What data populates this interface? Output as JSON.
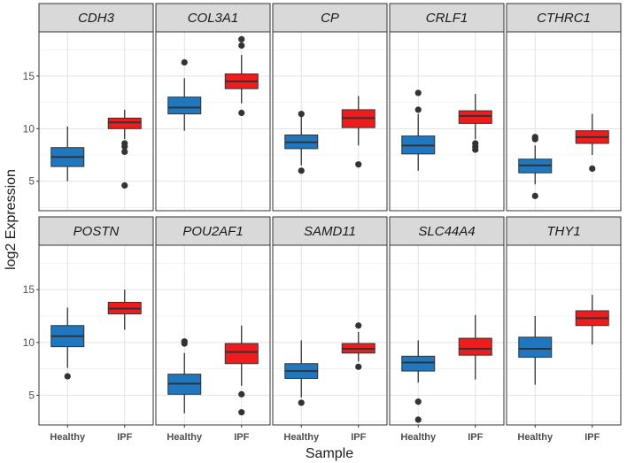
{
  "chart_data": {
    "type": "boxplot",
    "xlabel": "Sample",
    "ylabel": "log2 Expression",
    "ylim": [
      2.2,
      19.2
    ],
    "yticks": [
      5,
      10,
      15
    ],
    "ytick_labels": [
      "5",
      "10",
      "15"
    ],
    "categories": [
      "Healthy",
      "IPF"
    ],
    "colors": {
      "Healthy": "#1f77c0",
      "IPF": "#ee1c1c"
    },
    "grid": true,
    "facets": [
      {
        "gene": "CDH3",
        "Healthy": {
          "min": 5.0,
          "q1": 6.4,
          "median": 7.3,
          "q3": 8.2,
          "max": 10.2,
          "outliers": []
        },
        "IPF": {
          "min": 9.0,
          "q1": 10.0,
          "median": 10.6,
          "q3": 11.0,
          "max": 11.8,
          "outliers": [
            8.6,
            8.3,
            7.8,
            4.6
          ]
        }
      },
      {
        "gene": "COL3A1",
        "Healthy": {
          "min": 9.8,
          "q1": 11.4,
          "median": 12.0,
          "q3": 13.0,
          "max": 14.8,
          "outliers": [
            16.3
          ]
        },
        "IPF": {
          "min": 12.4,
          "q1": 13.8,
          "median": 14.5,
          "q3": 15.2,
          "max": 17.0,
          "outliers": [
            18.5,
            17.9,
            11.5
          ]
        }
      },
      {
        "gene": "CP",
        "Healthy": {
          "min": 6.5,
          "q1": 8.1,
          "median": 8.7,
          "q3": 9.4,
          "max": 11.2,
          "outliers": [
            6.0,
            11.4
          ]
        },
        "IPF": {
          "min": 8.4,
          "q1": 10.1,
          "median": 11.0,
          "q3": 11.8,
          "max": 13.1,
          "outliers": [
            6.6
          ]
        }
      },
      {
        "gene": "CRLF1",
        "Healthy": {
          "min": 6.0,
          "q1": 7.6,
          "median": 8.4,
          "q3": 9.3,
          "max": 11.4,
          "outliers": [
            11.8,
            13.4
          ]
        },
        "IPF": {
          "min": 9.0,
          "q1": 10.5,
          "median": 11.2,
          "q3": 11.7,
          "max": 13.3,
          "outliers": [
            8.6,
            8.3,
            8.0
          ]
        }
      },
      {
        "gene": "CTHRC1",
        "Healthy": {
          "min": 4.7,
          "q1": 5.8,
          "median": 6.5,
          "q3": 7.1,
          "max": 8.4,
          "outliers": [
            9.2,
            9.0,
            3.6
          ]
        },
        "IPF": {
          "min": 7.5,
          "q1": 8.6,
          "median": 9.2,
          "q3": 9.8,
          "max": 11.4,
          "outliers": [
            6.2
          ]
        }
      },
      {
        "gene": "POSTN",
        "Healthy": {
          "min": 7.6,
          "q1": 9.6,
          "median": 10.6,
          "q3": 11.6,
          "max": 13.3,
          "outliers": [
            6.8
          ]
        },
        "IPF": {
          "min": 11.2,
          "q1": 12.7,
          "median": 13.2,
          "q3": 13.8,
          "max": 15.0,
          "outliers": []
        }
      },
      {
        "gene": "POU2AF1",
        "Healthy": {
          "min": 3.3,
          "q1": 5.1,
          "median": 6.1,
          "q3": 7.0,
          "max": 9.0,
          "outliers": [
            10.1,
            9.9
          ]
        },
        "IPF": {
          "min": 5.9,
          "q1": 8.0,
          "median": 9.1,
          "q3": 9.9,
          "max": 11.6,
          "outliers": [
            5.1,
            3.4
          ]
        }
      },
      {
        "gene": "SAMD11",
        "Healthy": {
          "min": 4.8,
          "q1": 6.6,
          "median": 7.3,
          "q3": 8.0,
          "max": 10.2,
          "outliers": [
            4.3
          ]
        },
        "IPF": {
          "min": 8.2,
          "q1": 9.0,
          "median": 9.4,
          "q3": 9.9,
          "max": 11.0,
          "outliers": [
            11.6,
            7.7
          ]
        }
      },
      {
        "gene": "SLC44A4",
        "Healthy": {
          "min": 6.2,
          "q1": 7.3,
          "median": 8.1,
          "q3": 8.7,
          "max": 10.2,
          "outliers": [
            4.4,
            2.7
          ]
        },
        "IPF": {
          "min": 6.5,
          "q1": 8.8,
          "median": 9.4,
          "q3": 10.4,
          "max": 12.6,
          "outliers": []
        }
      },
      {
        "gene": "THY1",
        "Healthy": {
          "min": 6.0,
          "q1": 8.6,
          "median": 9.4,
          "q3": 10.5,
          "max": 12.5,
          "outliers": []
        },
        "IPF": {
          "min": 9.8,
          "q1": 11.6,
          "median": 12.3,
          "q3": 13.0,
          "max": 14.5,
          "outliers": []
        }
      }
    ]
  }
}
